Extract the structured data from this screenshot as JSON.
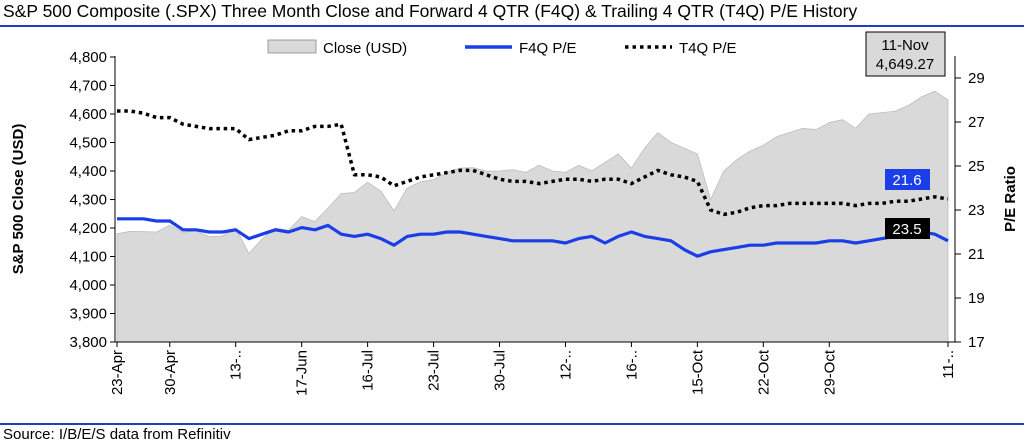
{
  "header": {
    "title": "S&P 500 Composite (.SPX) Three Month Close and Forward 4 QTR (F4Q) & Trailing 4 QTR (T4Q) P/E History"
  },
  "footer": {
    "source": "Source: I/B/E/S data from Refinitiv"
  },
  "chart_data": {
    "type": "area",
    "legend": {
      "placement": "top",
      "items": [
        {
          "label": "Close (USD)",
          "style": "area",
          "color": "#d9d9d9"
        },
        {
          "label": "F4Q P/E",
          "style": "line",
          "color": "#1a3ee8"
        },
        {
          "label": "T4Q P/E",
          "style": "dotted",
          "color": "#000000"
        }
      ]
    },
    "annotation": {
      "date": "11-Nov",
      "value": "4,649.27"
    },
    "y_left": {
      "label": "S&P 500 Close (USD)",
      "ylim": [
        3800,
        4800
      ],
      "ticks": [
        "3,800",
        "3,900",
        "4,000",
        "4,100",
        "4,200",
        "4,300",
        "4,400",
        "4,500",
        "4,600",
        "4,700",
        "4,800"
      ]
    },
    "y_right": {
      "label": "P/E Ratio",
      "ylim": [
        17,
        30
      ],
      "ticks": [
        "17",
        "19",
        "21",
        "23",
        "25",
        "27",
        "29"
      ]
    },
    "x_ticks": [
      "23-Apr",
      "30-Apr",
      "13-..",
      "17-Jun",
      "16-Jul",
      "23-Jul",
      "30-Jul",
      "12-..",
      "16-..",
      "15-Oct",
      "22-Oct",
      "29-Oct",
      "11-.."
    ],
    "end_labels": {
      "f4q": "21.6",
      "t4q": "23.5"
    },
    "grid": false,
    "series": [
      {
        "name": "Close (USD)",
        "axis": "left",
        "values": [
          4180,
          4188,
          4187,
          4186,
          4210,
          4185,
          4190,
          4170,
          4172,
          4200,
          4110,
          4161,
          4200,
          4192,
          4240,
          4222,
          4270,
          4320,
          4325,
          4360,
          4330,
          4260,
          4340,
          4362,
          4370,
          4395,
          4410,
          4412,
          4400,
          4400,
          4405,
          4395,
          4420,
          4400,
          4395,
          4420,
          4400,
          4430,
          4460,
          4410,
          4480,
          4535,
          4500,
          4480,
          4460,
          4300,
          4400,
          4440,
          4470,
          4490,
          4520,
          4535,
          4550,
          4545,
          4570,
          4580,
          4550,
          4600,
          4605,
          4610,
          4630,
          4660,
          4680,
          4649.27
        ]
      },
      {
        "name": "F4Q P/E",
        "axis": "right",
        "values": [
          22.6,
          22.6,
          22.6,
          22.5,
          22.5,
          22.1,
          22.1,
          22.0,
          22.0,
          22.1,
          21.7,
          21.9,
          22.1,
          22.0,
          22.2,
          22.1,
          22.3,
          21.9,
          21.8,
          21.9,
          21.7,
          21.4,
          21.8,
          21.9,
          21.9,
          22.0,
          22.0,
          21.9,
          21.8,
          21.7,
          21.6,
          21.6,
          21.6,
          21.6,
          21.5,
          21.7,
          21.8,
          21.5,
          21.8,
          22.0,
          21.8,
          21.7,
          21.6,
          21.2,
          20.9,
          21.1,
          21.2,
          21.3,
          21.4,
          21.4,
          21.5,
          21.5,
          21.5,
          21.5,
          21.6,
          21.6,
          21.5,
          21.6,
          21.7,
          21.8,
          21.9,
          22.0,
          21.9,
          21.6
        ]
      },
      {
        "name": "T4Q P/E",
        "axis": "right",
        "values": [
          27.5,
          27.5,
          27.4,
          27.2,
          27.2,
          26.9,
          26.8,
          26.7,
          26.7,
          26.7,
          26.2,
          26.3,
          26.4,
          26.6,
          26.6,
          26.8,
          26.8,
          26.9,
          24.6,
          24.6,
          24.5,
          24.1,
          24.3,
          24.5,
          24.6,
          24.7,
          24.8,
          24.8,
          24.6,
          24.4,
          24.3,
          24.3,
          24.2,
          24.3,
          24.4,
          24.4,
          24.3,
          24.4,
          24.4,
          24.2,
          24.5,
          24.8,
          24.6,
          24.5,
          24.3,
          23.0,
          22.8,
          22.9,
          23.1,
          23.2,
          23.2,
          23.3,
          23.3,
          23.3,
          23.3,
          23.3,
          23.2,
          23.3,
          23.3,
          23.4,
          23.4,
          23.5,
          23.6,
          23.5
        ]
      }
    ]
  }
}
